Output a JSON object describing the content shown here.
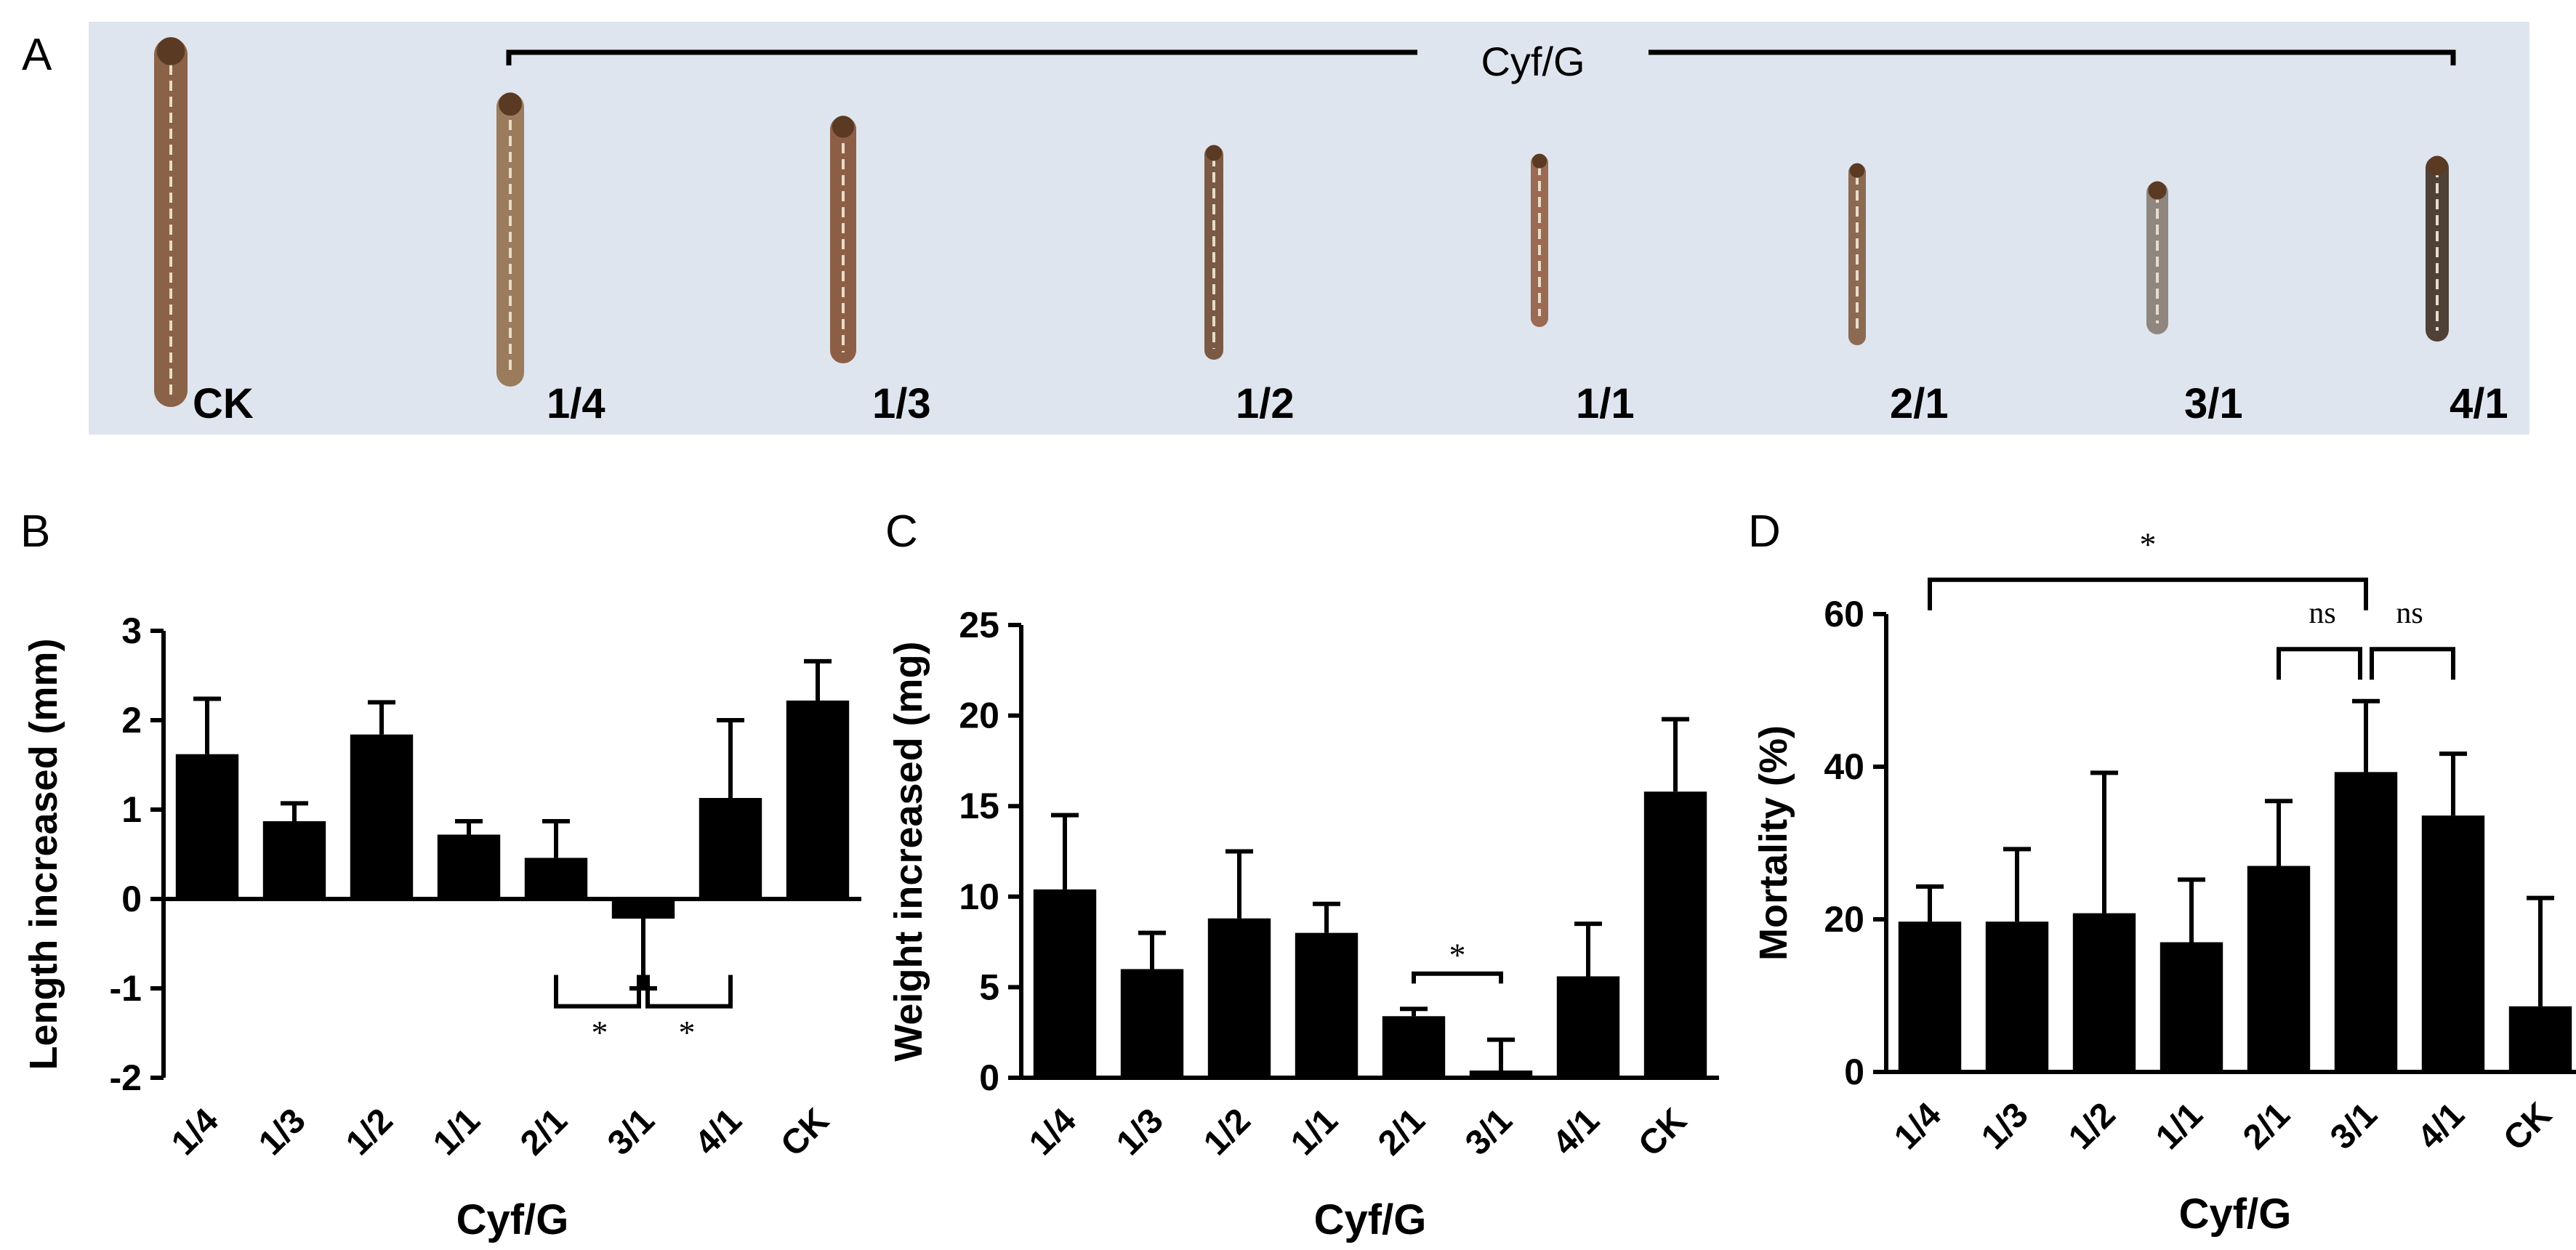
{
  "panel_a": {
    "label": "A",
    "bracket_label": "Cyf/G",
    "specimen_labels": [
      "CK",
      "1/4",
      "1/3",
      "1/2",
      "1/1",
      "2/1",
      "3/1",
      "4/1"
    ],
    "background_color": "#dfe5ee"
  },
  "chart_data": [
    {
      "panel": "B",
      "type": "bar",
      "title": "",
      "xlabel": "Cyf/G",
      "ylabel": "Length increased (mm)",
      "categories": [
        "1/4",
        "1/3",
        "1/2",
        "1/1",
        "2/1",
        "3/1",
        "4/1",
        "CK"
      ],
      "values": [
        1.62,
        0.87,
        1.84,
        0.72,
        0.46,
        -0.22,
        1.13,
        2.22
      ],
      "errors": [
        0.62,
        0.2,
        0.36,
        0.15,
        0.41,
        0.78,
        0.87,
        0.44
      ],
      "ylim": [
        -2,
        3
      ],
      "yticks": [
        "-2",
        "-1",
        "0",
        "1",
        "2",
        "3"
      ],
      "significance": [
        {
          "from": "2/1",
          "to": "3/1",
          "label": "*"
        },
        {
          "from": "3/1",
          "to": "4/1",
          "label": "*"
        }
      ]
    },
    {
      "panel": "C",
      "type": "bar",
      "title": "",
      "xlabel": "Cyf/G",
      "ylabel": "Weight increased (mg)",
      "categories": [
        "1/4",
        "1/3",
        "1/2",
        "1/1",
        "2/1",
        "3/1",
        "4/1",
        "CK"
      ],
      "values": [
        10.4,
        6.0,
        8.8,
        8.0,
        3.4,
        0.4,
        5.6,
        15.8
      ],
      "errors": [
        4.1,
        2.0,
        3.7,
        1.6,
        0.4,
        1.7,
        2.9,
        4.0
      ],
      "ylim": [
        0,
        25
      ],
      "yticks": [
        "0",
        "5",
        "10",
        "15",
        "20",
        "25"
      ],
      "significance": [
        {
          "from": "2/1",
          "to": "3/1",
          "label": "*"
        }
      ]
    },
    {
      "panel": "D",
      "type": "bar",
      "title": "",
      "xlabel": "Cyf/G",
      "ylabel": "Mortality (%)",
      "categories": [
        "1/4",
        "1/3",
        "1/2",
        "1/1",
        "2/1",
        "3/1",
        "4/1",
        "CK"
      ],
      "values": [
        19.7,
        19.7,
        20.8,
        17.0,
        27.0,
        39.3,
        33.6,
        8.6
      ],
      "errors": [
        4.6,
        9.5,
        18.4,
        8.2,
        8.5,
        9.3,
        8.1,
        14.2
      ],
      "ylim": [
        0,
        60
      ],
      "yticks": [
        "0",
        "20",
        "40",
        "60"
      ],
      "significance": [
        {
          "from": "1/4",
          "to": "3/1",
          "label": "*"
        },
        {
          "from": "2/1",
          "to": "3/1",
          "label": "ns"
        },
        {
          "from": "3/1",
          "to": "4/1",
          "label": "ns"
        }
      ]
    }
  ]
}
